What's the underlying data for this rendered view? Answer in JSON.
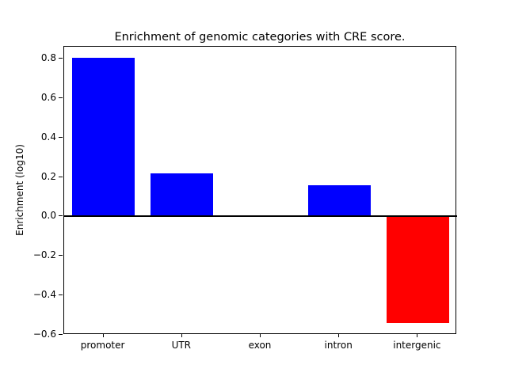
{
  "chart_data": {
    "type": "bar",
    "title": "Enrichment of genomic categories with CRE score.",
    "xlabel": "",
    "ylabel": "Enrichment (log10)",
    "categories": [
      "promoter",
      "UTR",
      "exon",
      "intron",
      "intergenic"
    ],
    "values": [
      0.805,
      0.22,
      0.007,
      0.16,
      -0.54
    ],
    "bar_colors": [
      "#0000ff",
      "#0000ff",
      "#0000ff",
      "#0000ff",
      "#ff0000"
    ],
    "positive_color": "#0000ff",
    "negative_color": "#ff0000",
    "ylim": [
      -0.6,
      0.86
    ],
    "yticks": [
      0.8,
      0.6,
      0.4,
      0.2,
      0.0,
      -0.2,
      -0.4,
      -0.6
    ],
    "ytick_labels": [
      "0.8",
      "0.6",
      "0.4",
      "0.2",
      "0.0",
      "−0.2",
      "−0.4",
      "−0.6"
    ],
    "bar_width_fraction": 0.8,
    "zero_line": true,
    "grid": false,
    "legend": null,
    "axis_color": "#000000",
    "background_color": "#ffffff"
  }
}
